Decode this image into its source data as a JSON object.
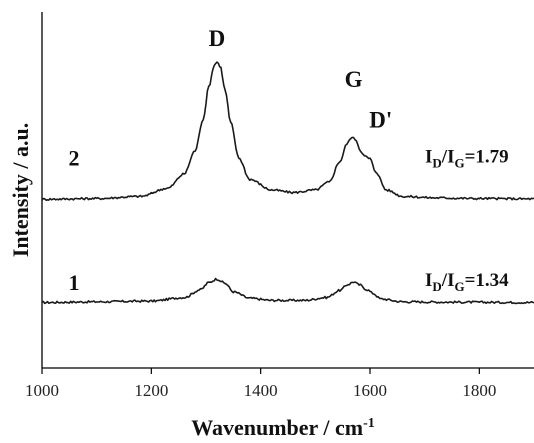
{
  "chart_data": {
    "type": "line",
    "xlabel": "Wavenumber / cm",
    "xlabel_superscript": "-1",
    "ylabel": "Intensity / a.u.",
    "xlim": [
      1000,
      1900
    ],
    "ylim": [
      0,
      1
    ],
    "x_ticks": [
      1000,
      1200,
      1400,
      1600,
      1800
    ],
    "x_tick_labels": [
      "1000",
      "1200",
      "1400",
      "1600",
      "1800"
    ],
    "y_ticks_visible": false,
    "grid": false,
    "legend": "none",
    "peak_labels": [
      {
        "text": "D",
        "x": 1320
      },
      {
        "text": "G",
        "x": 1570
      },
      {
        "text": "D'",
        "x": 1600
      }
    ],
    "series": [
      {
        "label": "1",
        "baseline": 0.186,
        "ratio_text": {
          "I1": "I",
          "sub1": "D",
          "sep": "/I",
          "sub2": "G",
          "value": "=1.34"
        },
        "points": [
          [
            1000,
            0.184
          ],
          [
            1100,
            0.186
          ],
          [
            1200,
            0.188
          ],
          [
            1260,
            0.198
          ],
          [
            1290,
            0.22
          ],
          [
            1305,
            0.24
          ],
          [
            1320,
            0.25
          ],
          [
            1335,
            0.238
          ],
          [
            1350,
            0.214
          ],
          [
            1380,
            0.196
          ],
          [
            1420,
            0.19
          ],
          [
            1480,
            0.19
          ],
          [
            1520,
            0.198
          ],
          [
            1545,
            0.218
          ],
          [
            1560,
            0.235
          ],
          [
            1570,
            0.242
          ],
          [
            1580,
            0.234
          ],
          [
            1595,
            0.22
          ],
          [
            1605,
            0.21
          ],
          [
            1620,
            0.194
          ],
          [
            1660,
            0.186
          ],
          [
            1750,
            0.185
          ],
          [
            1900,
            0.184
          ]
        ]
      },
      {
        "label": "2",
        "baseline": 0.476,
        "ratio_text": {
          "I1": "I",
          "sub1": "D",
          "sep": "/I",
          "sub2": "G",
          "value": "=1.79"
        },
        "points": [
          [
            1000,
            0.474
          ],
          [
            1100,
            0.476
          ],
          [
            1180,
            0.482
          ],
          [
            1230,
            0.505
          ],
          [
            1260,
            0.545
          ],
          [
            1280,
            0.61
          ],
          [
            1295,
            0.7
          ],
          [
            1305,
            0.79
          ],
          [
            1315,
            0.85
          ],
          [
            1320,
            0.86
          ],
          [
            1326,
            0.848
          ],
          [
            1335,
            0.78
          ],
          [
            1345,
            0.69
          ],
          [
            1360,
            0.59
          ],
          [
            1380,
            0.53
          ],
          [
            1420,
            0.5
          ],
          [
            1460,
            0.493
          ],
          [
            1500,
            0.5
          ],
          [
            1525,
            0.522
          ],
          [
            1545,
            0.58
          ],
          [
            1558,
            0.63
          ],
          [
            1566,
            0.648
          ],
          [
            1574,
            0.642
          ],
          [
            1582,
            0.612
          ],
          [
            1590,
            0.595
          ],
          [
            1600,
            0.588
          ],
          [
            1610,
            0.552
          ],
          [
            1630,
            0.5
          ],
          [
            1660,
            0.482
          ],
          [
            1720,
            0.478
          ],
          [
            1800,
            0.476
          ],
          [
            1900,
            0.475
          ]
        ]
      }
    ]
  }
}
